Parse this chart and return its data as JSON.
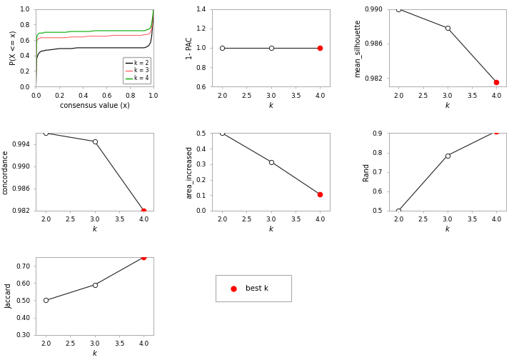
{
  "ecdf": {
    "x_vals": [
      0.0,
      0.005,
      0.01,
      0.015,
      0.02,
      0.03,
      0.04,
      0.05,
      0.06,
      0.07,
      0.08,
      0.09,
      0.1,
      0.15,
      0.2,
      0.25,
      0.3,
      0.35,
      0.4,
      0.45,
      0.5,
      0.55,
      0.6,
      0.65,
      0.7,
      0.75,
      0.8,
      0.85,
      0.9,
      0.92,
      0.94,
      0.96,
      0.975,
      0.985,
      0.995,
      1.0
    ],
    "k2": [
      0.0,
      0.35,
      0.38,
      0.4,
      0.42,
      0.44,
      0.45,
      0.46,
      0.46,
      0.46,
      0.47,
      0.47,
      0.47,
      0.48,
      0.49,
      0.49,
      0.49,
      0.5,
      0.5,
      0.5,
      0.5,
      0.5,
      0.5,
      0.5,
      0.5,
      0.5,
      0.5,
      0.5,
      0.5,
      0.5,
      0.51,
      0.53,
      0.57,
      0.66,
      0.85,
      1.0
    ],
    "k3": [
      0.0,
      0.56,
      0.6,
      0.61,
      0.62,
      0.62,
      0.63,
      0.63,
      0.63,
      0.63,
      0.63,
      0.63,
      0.63,
      0.63,
      0.63,
      0.63,
      0.64,
      0.64,
      0.64,
      0.65,
      0.65,
      0.65,
      0.65,
      0.66,
      0.66,
      0.66,
      0.66,
      0.66,
      0.66,
      0.67,
      0.67,
      0.68,
      0.7,
      0.76,
      0.9,
      1.0
    ],
    "k4": [
      0.0,
      0.62,
      0.66,
      0.67,
      0.68,
      0.69,
      0.69,
      0.69,
      0.69,
      0.7,
      0.7,
      0.7,
      0.7,
      0.7,
      0.7,
      0.7,
      0.71,
      0.71,
      0.71,
      0.71,
      0.72,
      0.72,
      0.72,
      0.72,
      0.72,
      0.72,
      0.72,
      0.72,
      0.72,
      0.72,
      0.73,
      0.74,
      0.76,
      0.82,
      0.94,
      1.0
    ],
    "colors": [
      "#000000",
      "#ff6666",
      "#00aa00"
    ],
    "labels": [
      "k = 2",
      "k = 3",
      "k = 4"
    ],
    "xlabel": "consensus value (x)",
    "ylabel": "P(X <= x)",
    "xlim": [
      0.0,
      1.0
    ],
    "ylim": [
      0.0,
      1.0
    ]
  },
  "pac": {
    "k": [
      2,
      3,
      4
    ],
    "values": [
      1.0,
      1.0,
      1.0
    ],
    "best_k": 4,
    "xlabel": "k",
    "ylabel": "1- PAC",
    "ylim": [
      0.6,
      1.4
    ],
    "yticks": [
      0.6,
      0.8,
      1.0,
      1.2,
      1.4
    ],
    "ytick_labels": [
      "0.6",
      "0.8",
      "1.0",
      "1.2",
      "1.4"
    ]
  },
  "silhouette": {
    "k": [
      2,
      3,
      4
    ],
    "values": [
      0.99,
      0.9878,
      0.9815
    ],
    "best_k": 4,
    "xlabel": "k",
    "ylabel": "mean_silhouette",
    "ylim": [
      0.981,
      0.99
    ],
    "yticks": [
      0.982,
      0.986,
      0.99
    ],
    "ytick_labels": [
      "0.982",
      "0.986",
      "0.990"
    ]
  },
  "concordance": {
    "k": [
      2,
      3,
      4
    ],
    "values": [
      0.996,
      0.9945,
      0.982
    ],
    "best_k": 4,
    "xlabel": "k",
    "ylabel": "concordance",
    "ylim": [
      0.982,
      0.996
    ],
    "yticks": [
      0.982,
      0.986,
      0.99,
      0.994
    ],
    "ytick_labels": [
      "0.982",
      "0.986",
      "0.990",
      "0.994"
    ]
  },
  "area_increased": {
    "k": [
      2,
      3,
      4
    ],
    "values": [
      0.5,
      0.315,
      0.105
    ],
    "best_k": 4,
    "xlabel": "k",
    "ylabel": "area_increased",
    "ylim": [
      0.0,
      0.5
    ],
    "yticks": [
      0.0,
      0.1,
      0.2,
      0.3,
      0.4,
      0.5
    ],
    "ytick_labels": [
      "0.0",
      "0.1",
      "0.2",
      "0.3",
      "0.4",
      "0.5"
    ]
  },
  "rand": {
    "k": [
      2,
      3,
      4
    ],
    "values": [
      0.5,
      0.785,
      0.91
    ],
    "best_k": 4,
    "xlabel": "k",
    "ylabel": "Rand",
    "ylim": [
      0.5,
      0.9
    ],
    "yticks": [
      0.5,
      0.6,
      0.7,
      0.8,
      0.9
    ],
    "ytick_labels": [
      "0.5",
      "0.6",
      "0.7",
      "0.8",
      "0.9"
    ]
  },
  "jaccard": {
    "k": [
      2,
      3,
      4
    ],
    "values": [
      0.5,
      0.59,
      0.75
    ],
    "best_k": 4,
    "xlabel": "k",
    "ylabel": "Jaccard",
    "ylim": [
      0.3,
      0.75
    ],
    "yticks": [
      0.3,
      0.4,
      0.5,
      0.6,
      0.7
    ],
    "ytick_labels": [
      "0.30",
      "0.40",
      "0.50",
      "0.60",
      "0.70"
    ]
  },
  "background_color": "#ffffff",
  "open_circle_color": "#ffffff",
  "line_color": "#222222",
  "best_k_color": "#ff0000",
  "legend_label": "best k"
}
